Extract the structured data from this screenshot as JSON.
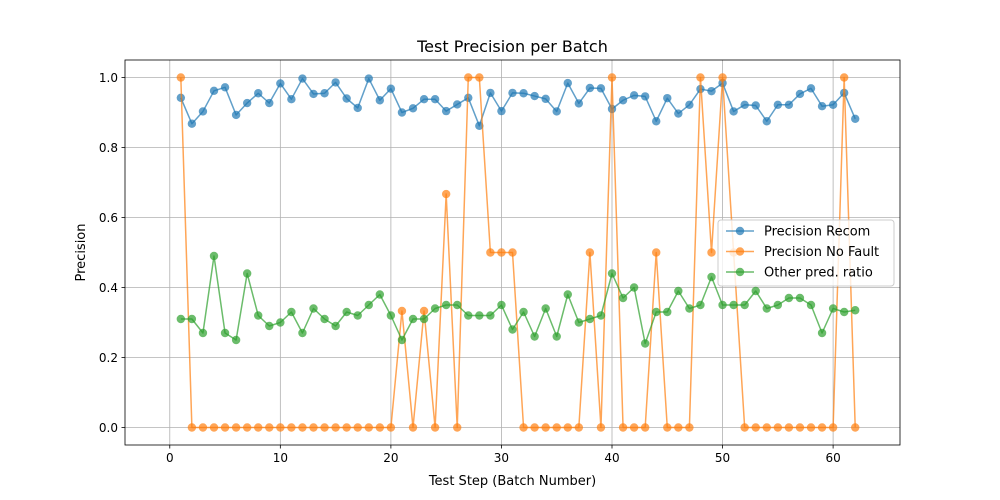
{
  "chart_data": {
    "type": "line",
    "title": "Test Precision per Batch",
    "xlabel": "Test Step (Batch Number)",
    "ylabel": "Precision",
    "xlim": [
      -4.05,
      66.05
    ],
    "ylim": [
      -0.05,
      1.05
    ],
    "xticks": [
      0,
      10,
      20,
      30,
      40,
      50,
      60
    ],
    "yticks": [
      0.0,
      0.2,
      0.4,
      0.6,
      0.8,
      1.0
    ],
    "ytick_labels": [
      "0.0",
      "0.2",
      "0.4",
      "0.6",
      "0.8",
      "1.0"
    ],
    "grid": true,
    "legend_position": "center-right",
    "x": [
      1,
      2,
      3,
      4,
      5,
      6,
      7,
      8,
      9,
      10,
      11,
      12,
      13,
      14,
      15,
      16,
      17,
      18,
      19,
      20,
      21,
      22,
      23,
      24,
      25,
      26,
      27,
      28,
      29,
      30,
      31,
      32,
      33,
      34,
      35,
      36,
      37,
      38,
      39,
      40,
      41,
      42,
      43,
      44,
      45,
      46,
      47,
      48,
      49,
      50,
      51,
      52,
      53,
      54,
      55,
      56,
      57,
      58,
      59,
      60,
      61,
      62
    ],
    "series": [
      {
        "name": "Precision Recom",
        "color": "#1f77b4",
        "values": [
          0.942,
          0.868,
          0.903,
          0.962,
          0.972,
          0.893,
          0.927,
          0.955,
          0.927,
          0.983,
          0.938,
          0.997,
          0.953,
          0.955,
          0.986,
          0.94,
          0.913,
          0.997,
          0.935,
          0.968,
          0.9,
          0.912,
          0.938,
          0.938,
          0.904,
          0.923,
          0.942,
          0.862,
          0.956,
          0.904,
          0.956,
          0.955,
          0.947,
          0.939,
          0.903,
          0.984,
          0.926,
          0.97,
          0.969,
          0.91,
          0.935,
          0.949,
          0.946,
          0.875,
          0.941,
          0.897,
          0.922,
          0.967,
          0.961,
          0.984,
          0.903,
          0.922,
          0.92,
          0.875,
          0.922,
          0.922,
          0.953,
          0.969,
          0.918,
          0.922,
          0.956,
          0.882
        ]
      },
      {
        "name": "Precision No Fault",
        "color": "#ff7f0e",
        "values": [
          1.0,
          0,
          0,
          0,
          0,
          0,
          0,
          0,
          0,
          0,
          0,
          0,
          0,
          0,
          0,
          0,
          0,
          0,
          0,
          0,
          0.333,
          0,
          0.333,
          0,
          0.667,
          0,
          1.0,
          1.0,
          0.5,
          0.5,
          0.5,
          0,
          0,
          0,
          0,
          0,
          0,
          0.5,
          0,
          1.0,
          0,
          0,
          0,
          0.5,
          0,
          0,
          0,
          1.0,
          0.5,
          1.0,
          0.5,
          0,
          0,
          0,
          0,
          0,
          0,
          0,
          0,
          0,
          1.0,
          0
        ]
      },
      {
        "name": "Other pred. ratio",
        "color": "#2ca02c",
        "values": [
          0.31,
          0.31,
          0.27,
          0.49,
          0.27,
          0.25,
          0.44,
          0.32,
          0.29,
          0.3,
          0.33,
          0.27,
          0.34,
          0.31,
          0.29,
          0.33,
          0.32,
          0.35,
          0.38,
          0.32,
          0.25,
          0.31,
          0.31,
          0.34,
          0.35,
          0.35,
          0.32,
          0.32,
          0.32,
          0.35,
          0.28,
          0.33,
          0.26,
          0.34,
          0.26,
          0.38,
          0.3,
          0.31,
          0.32,
          0.44,
          0.37,
          0.4,
          0.24,
          0.33,
          0.33,
          0.39,
          0.34,
          0.35,
          0.43,
          0.35,
          0.35,
          0.35,
          0.39,
          0.34,
          0.35,
          0.37,
          0.37,
          0.35,
          0.27,
          0.34,
          0.33,
          0.335
        ]
      }
    ]
  }
}
